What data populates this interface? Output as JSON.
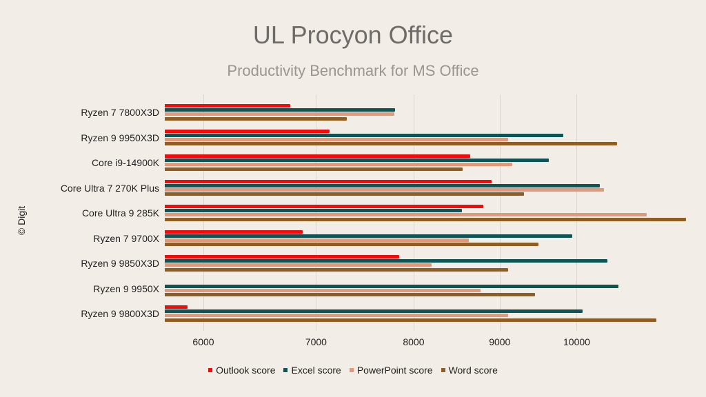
{
  "header": {
    "title": "UL Procyon Office",
    "subtitle": "Productivity Benchmark for MS Office"
  },
  "credit": "© Digit",
  "colors": {
    "background": "#f2ede6",
    "outlook": "#f40a0a",
    "excel": "#0d5457",
    "powerpoint": "#e0997a",
    "word": "#8e5e24"
  },
  "chart_data": {
    "type": "bar",
    "orientation": "horizontal",
    "title": "UL Procyon Office",
    "subtitle": "Productivity Benchmark for MS Office",
    "xlabel": "",
    "ylabel": "",
    "x_scale": "log",
    "xlim": [
      5700,
      12500
    ],
    "xticks": [
      6000,
      7000,
      8000,
      9000,
      10000
    ],
    "grid": true,
    "legend_position": "bottom",
    "categories": [
      "Ryzen 7 7800X3D",
      "Ryzen 9 9950X3D",
      "Core i9-14900K",
      "Core Ultra 7 270K Plus",
      "Core Ultra 9 285K",
      "Ryzen 7 9700X",
      "Ryzen 9 9850X3D",
      "Ryzen 9 9950X",
      "Ryzen 9 9800X3D"
    ],
    "series": [
      {
        "name": "Outlook score",
        "color": "#f40a0a",
        "values": [
          6756,
          7129,
          8642,
          8903,
          8800,
          6875,
          7841,
          null,
          5870
        ]
      },
      {
        "name": "Excel score",
        "color": "#0d5457",
        "values": [
          7799,
          9819,
          9625,
          10322,
          8547,
          9940,
          10431,
          10592,
          10080
        ]
      },
      {
        "name": "PowerPoint score",
        "color": "#e0997a",
        "values": [
          7789,
          9101,
          9154,
          10377,
          11001,
          8628,
          8199,
          8765,
          9101
        ]
      },
      {
        "name": "Word score",
        "color": "#8e5e24",
        "values": [
          7299,
          10568,
          8555,
          9303,
          11613,
          9487,
          9107,
          9443,
          11152
        ]
      }
    ]
  }
}
